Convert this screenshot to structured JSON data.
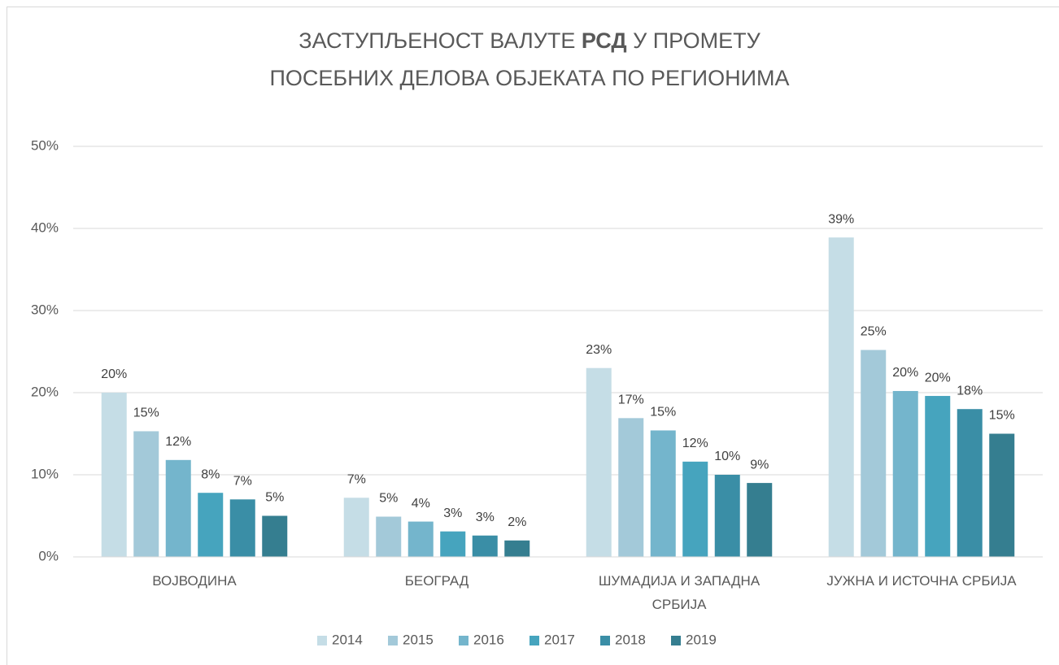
{
  "chart_data": {
    "type": "bar",
    "title": {
      "line1": [
        "ЗАСТУПЉЕНОСТ ВАЛУТЕ ",
        "РСД",
        " У ПРОМЕТУ"
      ],
      "line2": "ПОСЕБНИХ ДЕЛОВА ОБЈЕКАТА ПО РЕГИОНИМА"
    },
    "categories": [
      [
        "ВОЈВОДИНА"
      ],
      [
        "БЕОГРАД"
      ],
      [
        "ШУМАДИЈА И ЗАПАДНА",
        "СРБИЈА"
      ],
      [
        "ЈУЖНА И ИСТОЧНА СРБИЈА"
      ]
    ],
    "series": [
      {
        "name": "2014",
        "color": "#c5dde6",
        "values": [
          20,
          7.2,
          23,
          38.9
        ],
        "value_labels": [
          "20%",
          "7%",
          "23%",
          "39%"
        ]
      },
      {
        "name": "2015",
        "color": "#a3c9d9",
        "values": [
          15.3,
          4.9,
          16.9,
          25.2
        ],
        "value_labels": [
          "15%",
          "5%",
          "17%",
          "25%"
        ]
      },
      {
        "name": "2016",
        "color": "#74b5cc",
        "values": [
          11.8,
          4.3,
          15.4,
          20.2
        ],
        "value_labels": [
          "12%",
          "4%",
          "15%",
          "20%"
        ]
      },
      {
        "name": "2017",
        "color": "#46a4be",
        "values": [
          7.8,
          3.1,
          11.6,
          19.6
        ],
        "value_labels": [
          "8%",
          "3%",
          "12%",
          "20%"
        ]
      },
      {
        "name": "2018",
        "color": "#3a8ea6",
        "values": [
          7.0,
          2.6,
          10.0,
          18.0
        ],
        "value_labels": [
          "7%",
          "3%",
          "10%",
          "18%"
        ]
      },
      {
        "name": "2019",
        "color": "#357e90",
        "values": [
          5.0,
          2.0,
          9.0,
          15.0
        ],
        "value_labels": [
          "5%",
          "2%",
          "9%",
          "15%"
        ]
      }
    ],
    "ylim": [
      0,
      50
    ],
    "yticks": [
      {
        "value": 0,
        "label": "0%"
      },
      {
        "value": 10,
        "label": "10%"
      },
      {
        "value": 20,
        "label": "20%"
      },
      {
        "value": 30,
        "label": "30%"
      },
      {
        "value": 40,
        "label": "40%"
      },
      {
        "value": 50,
        "label": "50%"
      }
    ],
    "grid": true,
    "legend": "bottom"
  }
}
